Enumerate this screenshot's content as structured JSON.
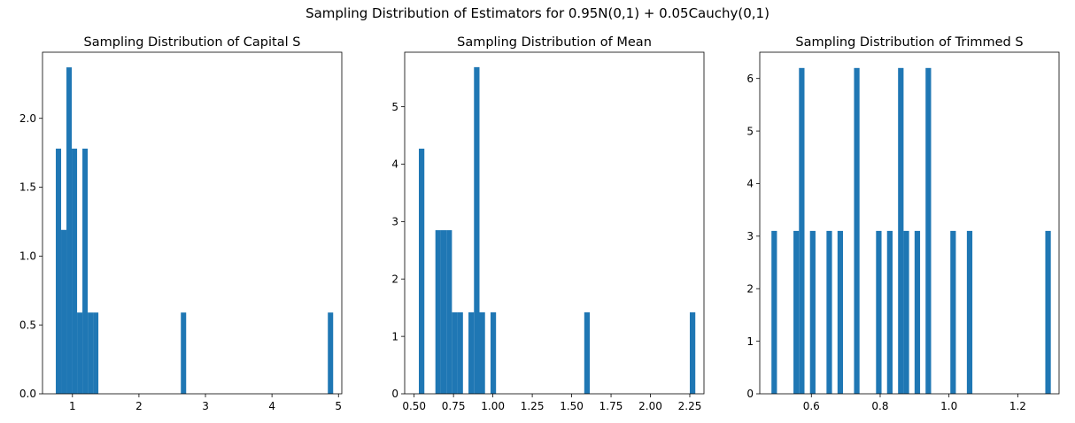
{
  "figure": {
    "suptitle": "Sampling Distribution of Estimators for 0.95N(0,1) + 0.05Cauchy(0,1)",
    "bar_color": "#1f77b4"
  },
  "chart_data": [
    {
      "type": "bar",
      "title": "Sampling Distribution of Capital S",
      "xlim": [
        0.55,
        5.05
      ],
      "ylim": [
        0,
        2.48
      ],
      "xticks": [
        1,
        2,
        3,
        4,
        5
      ],
      "xtick_labels": [
        "1",
        "2",
        "3",
        "4",
        "5"
      ],
      "yticks": [
        0.0,
        0.5,
        1.0,
        1.5,
        2.0
      ],
      "ytick_labels": [
        "0.0",
        "0.5",
        "1.0",
        "1.5",
        "2.0"
      ],
      "bins": [
        {
          "x0": 0.75,
          "x1": 0.83,
          "value": 1.78
        },
        {
          "x0": 0.83,
          "x1": 0.91,
          "value": 1.19
        },
        {
          "x0": 0.91,
          "x1": 0.99,
          "value": 2.37
        },
        {
          "x0": 0.99,
          "x1": 1.07,
          "value": 1.78
        },
        {
          "x0": 1.07,
          "x1": 1.15,
          "value": 0.59
        },
        {
          "x0": 1.15,
          "x1": 1.23,
          "value": 1.78
        },
        {
          "x0": 1.23,
          "x1": 1.31,
          "value": 0.59
        },
        {
          "x0": 1.31,
          "x1": 1.39,
          "value": 0.59
        },
        {
          "x0": 2.63,
          "x1": 2.71,
          "value": 0.59
        },
        {
          "x0": 4.84,
          "x1": 4.92,
          "value": 0.59
        }
      ]
    },
    {
      "type": "bar",
      "title": "Sampling Distribution of Mean",
      "xlim": [
        0.44,
        2.34
      ],
      "ylim": [
        0,
        5.95
      ],
      "xticks": [
        0.5,
        0.75,
        1.0,
        1.25,
        1.5,
        1.75,
        2.0,
        2.25
      ],
      "xtick_labels": [
        "0.50",
        "0.75",
        "1.00",
        "1.25",
        "1.50",
        "1.75",
        "2.00",
        "2.25"
      ],
      "yticks": [
        0,
        1,
        2,
        3,
        4,
        5
      ],
      "ytick_labels": [
        "0",
        "1",
        "2",
        "3",
        "4",
        "5"
      ],
      "bins": [
        {
          "x0": 0.53,
          "x1": 0.565,
          "value": 4.27
        },
        {
          "x0": 0.635,
          "x1": 0.67,
          "value": 2.85
        },
        {
          "x0": 0.67,
          "x1": 0.705,
          "value": 2.85
        },
        {
          "x0": 0.705,
          "x1": 0.74,
          "value": 2.85
        },
        {
          "x0": 0.74,
          "x1": 0.775,
          "value": 1.42
        },
        {
          "x0": 0.775,
          "x1": 0.81,
          "value": 1.42
        },
        {
          "x0": 0.845,
          "x1": 0.88,
          "value": 1.42
        },
        {
          "x0": 0.88,
          "x1": 0.915,
          "value": 5.69
        },
        {
          "x0": 0.915,
          "x1": 0.95,
          "value": 1.42
        },
        {
          "x0": 0.985,
          "x1": 1.02,
          "value": 1.42
        },
        {
          "x0": 1.58,
          "x1": 1.615,
          "value": 1.42
        },
        {
          "x0": 2.25,
          "x1": 2.285,
          "value": 1.42
        }
      ]
    },
    {
      "type": "bar",
      "title": "Sampling Distribution of Trimmed S",
      "xlim": [
        0.45,
        1.32
      ],
      "ylim": [
        0,
        6.5
      ],
      "xticks": [
        0.6,
        0.8,
        1.0,
        1.2
      ],
      "xtick_labels": [
        "0.6",
        "0.8",
        "1.0",
        "1.2"
      ],
      "yticks": [
        0,
        1,
        2,
        3,
        4,
        5,
        6
      ],
      "ytick_labels": [
        "0",
        "1",
        "2",
        "3",
        "4",
        "5",
        "6"
      ],
      "bins": [
        {
          "x0": 0.484,
          "x1": 0.5,
          "value": 3.1
        },
        {
          "x0": 0.548,
          "x1": 0.564,
          "value": 3.1
        },
        {
          "x0": 0.564,
          "x1": 0.58,
          "value": 6.2
        },
        {
          "x0": 0.596,
          "x1": 0.612,
          "value": 3.1
        },
        {
          "x0": 0.644,
          "x1": 0.66,
          "value": 3.1
        },
        {
          "x0": 0.676,
          "x1": 0.692,
          "value": 3.1
        },
        {
          "x0": 0.724,
          "x1": 0.74,
          "value": 6.2
        },
        {
          "x0": 0.788,
          "x1": 0.804,
          "value": 3.1
        },
        {
          "x0": 0.82,
          "x1": 0.836,
          "value": 3.1
        },
        {
          "x0": 0.852,
          "x1": 0.868,
          "value": 6.2
        },
        {
          "x0": 0.868,
          "x1": 0.884,
          "value": 3.1
        },
        {
          "x0": 0.9,
          "x1": 0.916,
          "value": 3.1
        },
        {
          "x0": 0.932,
          "x1": 0.948,
          "value": 6.2
        },
        {
          "x0": 1.004,
          "x1": 1.02,
          "value": 3.1
        },
        {
          "x0": 1.052,
          "x1": 1.068,
          "value": 3.1
        },
        {
          "x0": 1.28,
          "x1": 1.296,
          "value": 3.1
        }
      ]
    }
  ]
}
